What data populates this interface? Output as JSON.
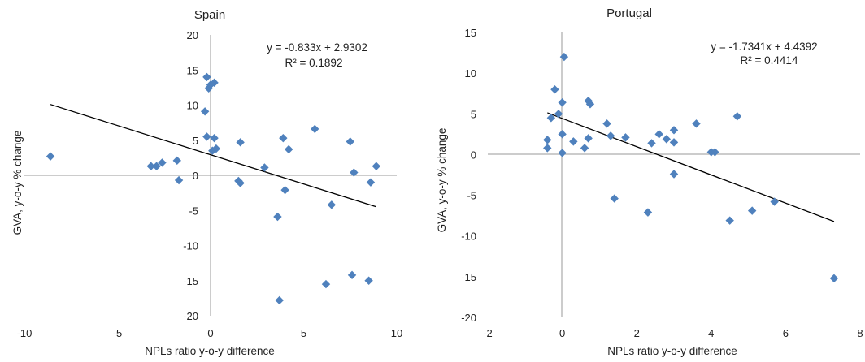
{
  "chart_data": [
    {
      "type": "scatter",
      "title": "Spain",
      "xlabel": "NPLs ratio y-o-y difference",
      "ylabel": "GVA, y-o-y % change",
      "xlim": [
        -10,
        10
      ],
      "ylim": [
        -20,
        20
      ],
      "xticks": [
        -10,
        -5,
        0,
        5,
        10
      ],
      "yticks": [
        -20,
        -15,
        -10,
        -5,
        0,
        5,
        10,
        15,
        20
      ],
      "grid": false,
      "marker_color": "#4F81BD",
      "trendline": {
        "slope": -0.833,
        "intercept": 2.9302,
        "x_range": [
          -8.6,
          8.9
        ]
      },
      "annotation": {
        "equation": "y = -0.833x + 2.9302",
        "r2": "R² = 0.1892"
      },
      "points": [
        [
          -8.6,
          2.7
        ],
        [
          -3.2,
          1.3
        ],
        [
          -2.9,
          1.3
        ],
        [
          -2.6,
          1.8
        ],
        [
          -1.8,
          2.1
        ],
        [
          -1.7,
          -0.7
        ],
        [
          -0.2,
          14.0
        ],
        [
          -0.1,
          12.4
        ],
        [
          0.0,
          12.9
        ],
        [
          0.2,
          13.2
        ],
        [
          -0.3,
          9.1
        ],
        [
          -0.2,
          5.5
        ],
        [
          0.2,
          5.3
        ],
        [
          0.1,
          3.5
        ],
        [
          0.3,
          3.8
        ],
        [
          1.5,
          -0.8
        ],
        [
          1.6,
          -1.1
        ],
        [
          1.6,
          4.7
        ],
        [
          2.9,
          1.1
        ],
        [
          3.6,
          -5.9
        ],
        [
          3.7,
          -17.8
        ],
        [
          3.9,
          5.3
        ],
        [
          4.0,
          -2.1
        ],
        [
          4.2,
          3.7
        ],
        [
          5.6,
          6.6
        ],
        [
          6.2,
          -15.5
        ],
        [
          6.5,
          -4.2
        ],
        [
          7.5,
          4.8
        ],
        [
          7.6,
          -14.2
        ],
        [
          7.7,
          0.4
        ],
        [
          8.5,
          -15.0
        ],
        [
          8.6,
          -1.0
        ],
        [
          8.9,
          1.3
        ]
      ]
    },
    {
      "type": "scatter",
      "title": "Portugal",
      "xlabel": "NPLs ratio y-o-y difference",
      "ylabel": "GVA, y-o-y % change",
      "xlim": [
        -2,
        8
      ],
      "ylim": [
        -20,
        15
      ],
      "xticks": [
        -2,
        0,
        2,
        4,
        6,
        8
      ],
      "yticks": [
        -20,
        -15,
        -10,
        -5,
        0,
        5,
        10,
        15
      ],
      "grid": false,
      "marker_color": "#4F81BD",
      "trendline": {
        "slope": -1.7341,
        "intercept": 4.4392,
        "x_range": [
          -0.4,
          7.3
        ]
      },
      "annotation": {
        "equation": "y = -1.7341x + 4.4392",
        "r2": "R² = 0.4414"
      },
      "points": [
        [
          -0.4,
          1.8
        ],
        [
          -0.4,
          0.8
        ],
        [
          -0.3,
          4.5
        ],
        [
          -0.2,
          8.0
        ],
        [
          -0.1,
          5.0
        ],
        [
          0.0,
          6.4
        ],
        [
          0.05,
          12.0
        ],
        [
          0.0,
          2.5
        ],
        [
          0.0,
          0.2
        ],
        [
          0.3,
          1.6
        ],
        [
          0.6,
          0.8
        ],
        [
          0.7,
          6.6
        ],
        [
          0.75,
          6.2
        ],
        [
          0.7,
          2.0
        ],
        [
          1.2,
          3.8
        ],
        [
          1.3,
          2.3
        ],
        [
          1.4,
          -5.4
        ],
        [
          1.7,
          2.1
        ],
        [
          2.3,
          -7.1
        ],
        [
          2.4,
          1.4
        ],
        [
          2.6,
          2.5
        ],
        [
          2.8,
          1.9
        ],
        [
          3.0,
          3.0
        ],
        [
          3.0,
          1.5
        ],
        [
          3.0,
          -2.4
        ],
        [
          3.6,
          3.8
        ],
        [
          4.0,
          0.3
        ],
        [
          4.1,
          0.3
        ],
        [
          4.5,
          -8.1
        ],
        [
          4.7,
          4.7
        ],
        [
          5.1,
          -6.9
        ],
        [
          5.7,
          -5.8
        ],
        [
          7.3,
          -15.2
        ]
      ]
    }
  ]
}
